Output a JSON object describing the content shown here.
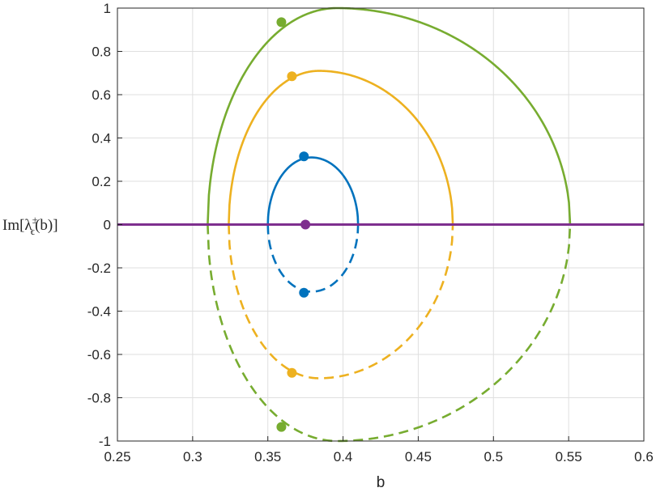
{
  "chart_data": {
    "type": "line",
    "xlabel": "b",
    "ylabel": {
      "prefix": "Im[λ",
      "superscript": "±",
      "subscript": "ϵ",
      "suffix": "(b)]"
    },
    "xlim": [
      0.25,
      0.6
    ],
    "ylim": [
      -1,
      1
    ],
    "xticks": [
      "0.25",
      "0.3",
      "0.35",
      "0.4",
      "0.45",
      "0.5",
      "0.55",
      "0.6"
    ],
    "yticks": [
      "-1",
      "-0.8",
      "-0.6",
      "-0.4",
      "-0.2",
      "0",
      "0.2",
      "0.4",
      "0.6",
      "0.8",
      "1"
    ],
    "grid": true,
    "series": [
      {
        "color": "#0072BD",
        "x0": 0.35,
        "x1": 0.41,
        "apex_x": 0.379,
        "apex_y": 0.31,
        "points": [
          [
            0.374,
            0.315
          ],
          [
            0.374,
            -0.315
          ]
        ]
      },
      {
        "color": "#EDB120",
        "x0": 0.324,
        "x1": 0.473,
        "apex_x": 0.384,
        "apex_y": 0.71,
        "points": [
          [
            0.366,
            0.685
          ],
          [
            0.366,
            -0.685
          ]
        ]
      },
      {
        "color": "#77AC30",
        "x0": 0.31,
        "x1": 0.551,
        "apex_x": 0.396,
        "apex_y": 1.0,
        "points": [
          [
            0.359,
            0.935
          ],
          [
            0.359,
            -0.935
          ]
        ]
      },
      {
        "color": "#7E2F8E",
        "line": "horizontal",
        "y": 0,
        "points": [
          [
            0.375,
            0
          ]
        ]
      }
    ]
  }
}
